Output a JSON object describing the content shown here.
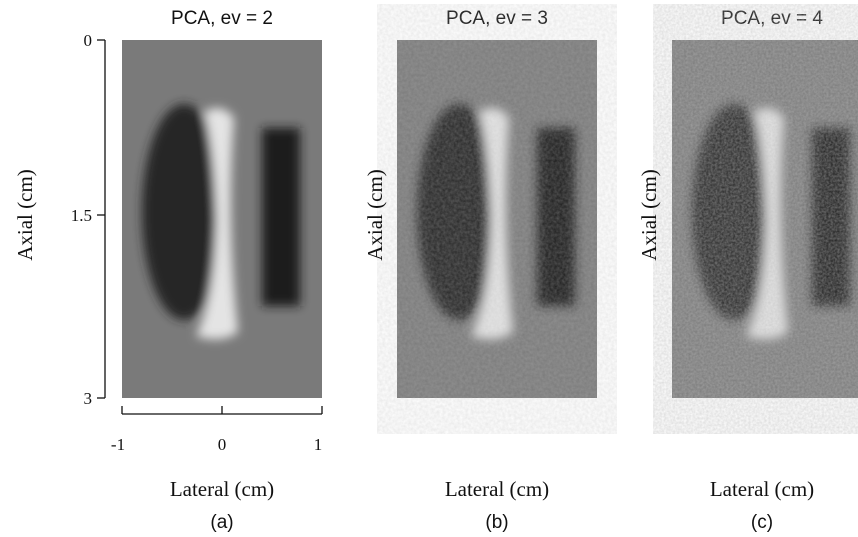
{
  "panels": [
    {
      "title": "PCA, ev = 2",
      "y_axis_label": "Axial (cm)",
      "x_axis_label": "Lateral (cm)",
      "caption": "(a)",
      "y_ticks": [
        "0",
        "1.5",
        "3"
      ],
      "x_ticks": [
        "-1",
        "0",
        "1"
      ]
    },
    {
      "title": "PCA, ev = 3",
      "y_axis_label": "Axial (cm)",
      "x_axis_label": "Lateral (cm)",
      "caption": "(b)"
    },
    {
      "title": "PCA, ev = 4",
      "y_axis_label": "Axial (cm)",
      "x_axis_label": "Lateral (cm)",
      "caption": "(c)"
    }
  ]
}
